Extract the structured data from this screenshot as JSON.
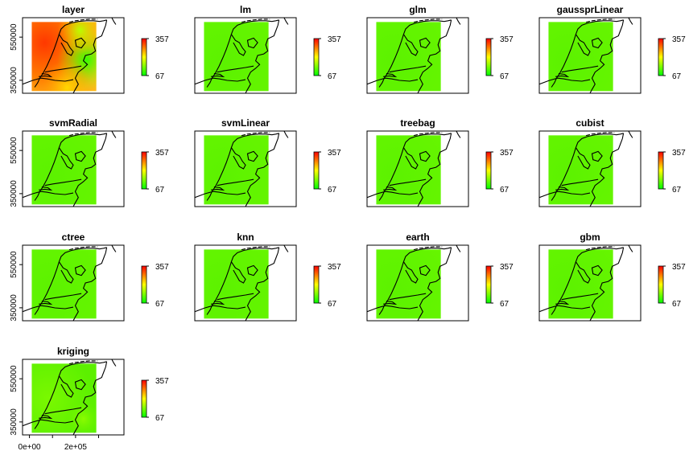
{
  "chart_data": {
    "type": "heatmap",
    "description_title": "Raster map predictions over the Netherlands",
    "color_scale": {
      "low": "#00ff00",
      "mid": "#ffff00",
      "high": "#ff0000"
    },
    "legend": {
      "min_label": "67",
      "max_label": "357",
      "min": 67,
      "max": 357
    },
    "x_axis": {
      "tick_labels": [
        "0e+00",
        "2e+05"
      ],
      "ticks": [
        0,
        200000
      ],
      "xlim": [
        -30000,
        410000
      ]
    },
    "y_axis": {
      "tick_labels": [
        "350000",
        "550000"
      ],
      "ticks": [
        350000,
        550000
      ],
      "ylim": [
        290000,
        640000
      ]
    },
    "raster_extent": {
      "xmin": 10000,
      "xmax": 290000,
      "ymin": 300000,
      "ymax": 620000
    },
    "panels": [
      {
        "title": "layer",
        "mean": 300,
        "variation": "high"
      },
      {
        "title": "lm",
        "mean": 118,
        "variation": "low"
      },
      {
        "title": "glm",
        "mean": 118,
        "variation": "low"
      },
      {
        "title": "gaussprLinear",
        "mean": 118,
        "variation": "low"
      },
      {
        "title": "svmRadial",
        "mean": 118,
        "variation": "low"
      },
      {
        "title": "svmLinear",
        "mean": 118,
        "variation": "low"
      },
      {
        "title": "treebag",
        "mean": 118,
        "variation": "low"
      },
      {
        "title": "cubist",
        "mean": 118,
        "variation": "low"
      },
      {
        "title": "ctree",
        "mean": 118,
        "variation": "low"
      },
      {
        "title": "knn",
        "mean": 118,
        "variation": "low"
      },
      {
        "title": "earth",
        "mean": 118,
        "variation": "low"
      },
      {
        "title": "gbm",
        "mean": 118,
        "variation": "low"
      },
      {
        "title": "kriging",
        "mean": 122,
        "variation": "medium"
      }
    ]
  }
}
